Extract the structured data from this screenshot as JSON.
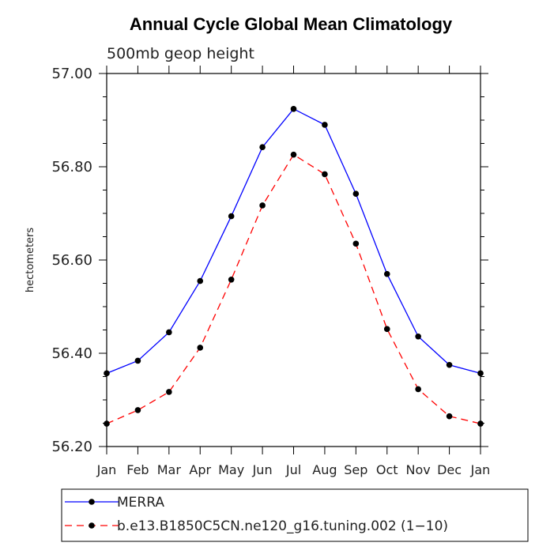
{
  "chart_data": {
    "type": "line",
    "title": "Annual Cycle Global Mean Climatology",
    "subtitle": "500mb geop height",
    "xlabel": "",
    "ylabel": "hectometers",
    "categories": [
      "Jan",
      "Feb",
      "Mar",
      "Apr",
      "May",
      "Jun",
      "Jul",
      "Aug",
      "Sep",
      "Oct",
      "Nov",
      "Dec",
      "Jan"
    ],
    "ylim": [
      56.2,
      57.0
    ],
    "yticks": [
      "56.20",
      "56.40",
      "56.60",
      "56.80",
      "57.00"
    ],
    "grid": false,
    "legend_position": "bottom",
    "series": [
      {
        "name": "MERRA",
        "color": "#0000ff",
        "line_style": "solid",
        "marker": "filled-circle",
        "values": [
          56.357,
          56.384,
          56.445,
          56.555,
          56.694,
          56.842,
          56.924,
          56.89,
          56.742,
          56.57,
          56.436,
          56.375,
          56.357
        ]
      },
      {
        "name": "b.e13.B1850C5CN.ne120_g16.tuning.002 (1−10)",
        "color": "#ff0000",
        "line_style": "dashed",
        "marker": "filled-circle",
        "values": [
          56.249,
          56.278,
          56.317,
          56.412,
          56.558,
          56.717,
          56.826,
          56.784,
          56.635,
          56.452,
          56.323,
          56.265,
          56.249
        ]
      }
    ]
  }
}
